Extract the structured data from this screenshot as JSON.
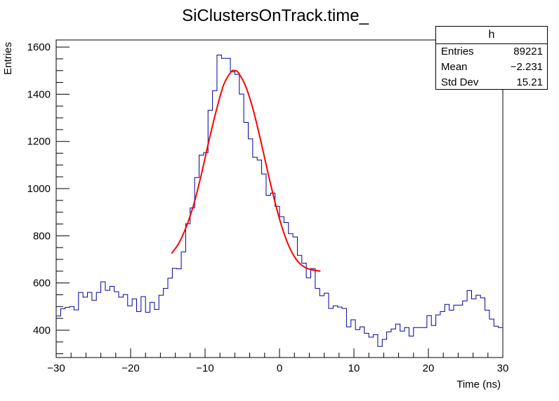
{
  "chart_data": {
    "type": "histogram",
    "title": "SiClustersOnTrack.time_",
    "xlabel": "Time (ns)",
    "ylabel": "Entries",
    "xlim": [
      -30,
      30
    ],
    "ylim": [
      284,
      1630
    ],
    "xticks": [
      -30,
      -20,
      -10,
      0,
      10,
      20,
      30
    ],
    "yticks": [
      400,
      600,
      800,
      1000,
      1200,
      1400,
      1600
    ],
    "grid": false,
    "colors": {
      "histogram": "#000099",
      "fit": "#ff0000"
    },
    "bin_width": 0.6,
    "values": [
      460,
      491,
      497,
      500,
      486,
      560,
      540,
      560,
      527,
      560,
      605,
      569,
      586,
      563,
      540,
      551,
      503,
      533,
      479,
      542,
      476,
      518,
      488,
      548,
      577,
      620,
      662,
      660,
      732,
      851,
      918,
      1047,
      1142,
      1152,
      1332,
      1415,
      1566,
      1552,
      1552,
      1495,
      1484,
      1401,
      1281,
      1211,
      1133,
      1121,
      1062,
      972,
      981,
      925,
      881,
      856,
      809,
      795,
      717,
      684,
      622,
      661,
      577,
      546,
      557,
      492,
      503,
      498,
      492,
      414,
      444,
      402,
      414,
      387,
      370,
      381,
      331,
      361,
      393,
      405,
      426,
      396,
      411,
      375,
      411,
      411,
      411,
      462,
      420,
      465,
      479,
      509,
      485,
      506,
      506,
      524,
      568,
      533,
      548,
      537,
      485,
      447,
      417,
      411
    ],
    "fit": {
      "x": [
        -14.5,
        -13.5,
        -12.5,
        -11.5,
        -10.5,
        -9.5,
        -8.5,
        -7.5,
        -6.5,
        -6,
        -5.5,
        -4.5,
        -3.5,
        -2.5,
        -1.5,
        -0.5,
        0.5,
        1.5,
        2.5,
        3.5,
        4.5,
        5.5
      ],
      "y": [
        725,
        770,
        840,
        935,
        1060,
        1200,
        1330,
        1440,
        1495,
        1500,
        1490,
        1430,
        1330,
        1200,
        1060,
        930,
        820,
        740,
        690,
        665,
        655,
        650
      ]
    },
    "stats": {
      "name": "h",
      "rows": [
        {
          "label": "Entries",
          "value": "89221"
        },
        {
          "label": "Mean",
          "value": "−2.231"
        },
        {
          "label": "Std Dev",
          "value": "15.21"
        }
      ]
    }
  }
}
